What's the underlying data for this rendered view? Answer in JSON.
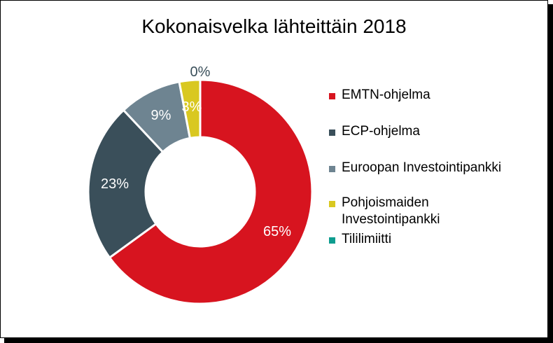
{
  "chart_data": {
    "type": "pie",
    "subtype": "doughnut",
    "title": "Kokonaisvelka lähteittäin 2018",
    "categories": [
      "EMTN-ohjelma",
      "ECP-ohjelma",
      "Euroopan Investointipankki",
      "Pohjoismaiden Investointipankki",
      "Tililimiitti"
    ],
    "values": [
      65,
      23,
      9,
      3,
      0
    ],
    "labels": [
      "65%",
      "23%",
      "9%",
      "3%",
      "0%"
    ],
    "colors": [
      "#d7141f",
      "#3a4f5a",
      "#6e8491",
      "#d9c820",
      "#0e9d8f"
    ],
    "label_colors": [
      "#ffffff",
      "#ffffff",
      "#ffffff",
      "#ffffff",
      "#3a4f5a"
    ],
    "legend_position": "right",
    "legend_label_lines": [
      [
        "EMTN-ohjelma"
      ],
      [
        "ECP-ohjelma"
      ],
      [
        "Euroopan Investointipankki"
      ],
      [
        "Pohjoismaiden",
        "Investointipankki"
      ],
      [
        "Tililimiitti"
      ]
    ]
  }
}
